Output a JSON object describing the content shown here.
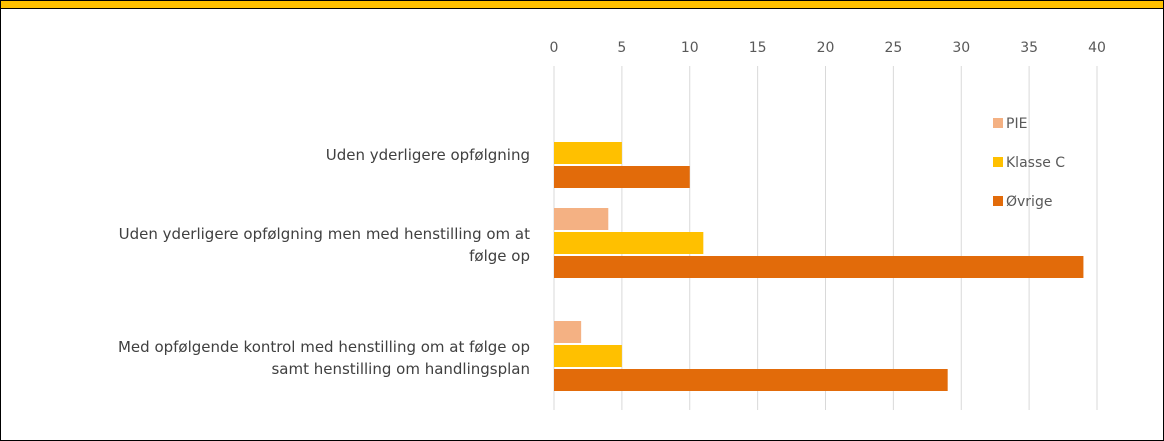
{
  "theme": {
    "band_color": "#ffc000",
    "grid_color": "#d9d9d9"
  },
  "chart_data": {
    "type": "bar",
    "orientation": "horizontal",
    "categories": [
      [
        "Uden yderligere opfølgning"
      ],
      [
        "Uden yderligere opfølgning men med henstilling om at",
        "følge op"
      ],
      [
        "Med opfølgende kontrol med henstilling om at følge op",
        "samt henstilling om handlingsplan"
      ]
    ],
    "series": [
      {
        "name": "PIE",
        "color": "#f4b183",
        "values": [
          0,
          4,
          2
        ]
      },
      {
        "name": "Klasse C",
        "color": "#ffc000",
        "values": [
          5,
          11,
          5
        ]
      },
      {
        "name": "Øvrige",
        "color": "#e26b0a",
        "values": [
          10,
          39,
          29
        ]
      }
    ],
    "xlim": [
      0,
      40
    ],
    "xticks": [
      0,
      5,
      10,
      15,
      20,
      25,
      30,
      35,
      40
    ],
    "axis_position": "top",
    "grid": true,
    "legend": "right"
  }
}
